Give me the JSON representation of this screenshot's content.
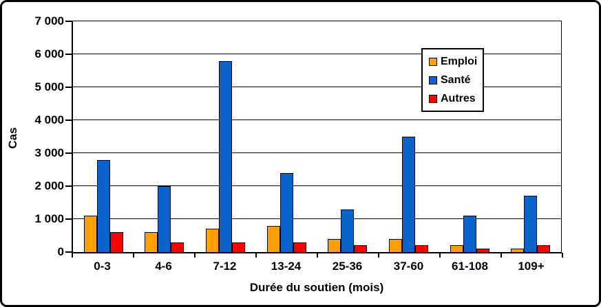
{
  "chart_data": {
    "type": "bar",
    "title": "",
    "xlabel": "Durée du soutien (mois)",
    "ylabel": "Cas",
    "categories": [
      "0-3",
      "4-6",
      "7-12",
      "13-24",
      "25-36",
      "37-60",
      "61-108",
      "109+"
    ],
    "series": [
      {
        "name": "Emploi",
        "color": "#FFA000",
        "values": [
          1100,
          600,
          700,
          800,
          400,
          400,
          200,
          100
        ]
      },
      {
        "name": "Santé",
        "color": "#0B64CB",
        "values": [
          2800,
          2000,
          5800,
          2400,
          1300,
          3500,
          1100,
          1700
        ]
      },
      {
        "name": "Autres",
        "color": "#FF0000",
        "values": [
          600,
          300,
          300,
          300,
          200,
          200,
          100,
          200
        ]
      }
    ],
    "ylim": [
      0,
      7000
    ],
    "ytick_step": 1000,
    "ytick_labels": [
      "0",
      "1 000",
      "2 000",
      "3 000",
      "4 000",
      "5 000",
      "6 000",
      "7 000"
    ],
    "grid": true,
    "legend_position": "top-right-inside",
    "colors": {
      "axis": "#000000",
      "background": "#FFFFFF"
    }
  }
}
